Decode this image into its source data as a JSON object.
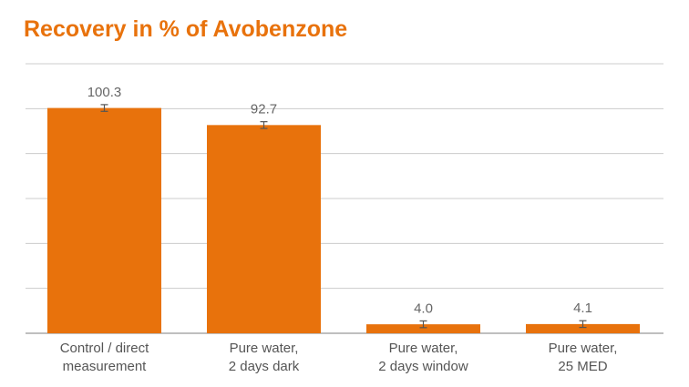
{
  "chart_data": {
    "type": "bar",
    "title": "Recovery in % of Avobenzone",
    "categories": [
      [
        "Control / direct",
        "measurement"
      ],
      [
        "Pure water,",
        "2 days dark"
      ],
      [
        "Pure water,",
        "2 days window"
      ],
      [
        "Pure water,",
        "25 MED"
      ]
    ],
    "values": [
      100.3,
      92.7,
      4.0,
      4.1
    ],
    "value_labels": [
      "100.3",
      "92.7",
      "4.0",
      "4.1"
    ],
    "error": [
      1.5,
      1.5,
      1.5,
      1.5
    ],
    "ylim": [
      0,
      120
    ],
    "ytick_step": 20,
    "grid": true,
    "xlabel": "",
    "ylabel": "",
    "bar_color": "#e8720c",
    "grid_color": "#cccccc",
    "error_color": "#555555"
  }
}
